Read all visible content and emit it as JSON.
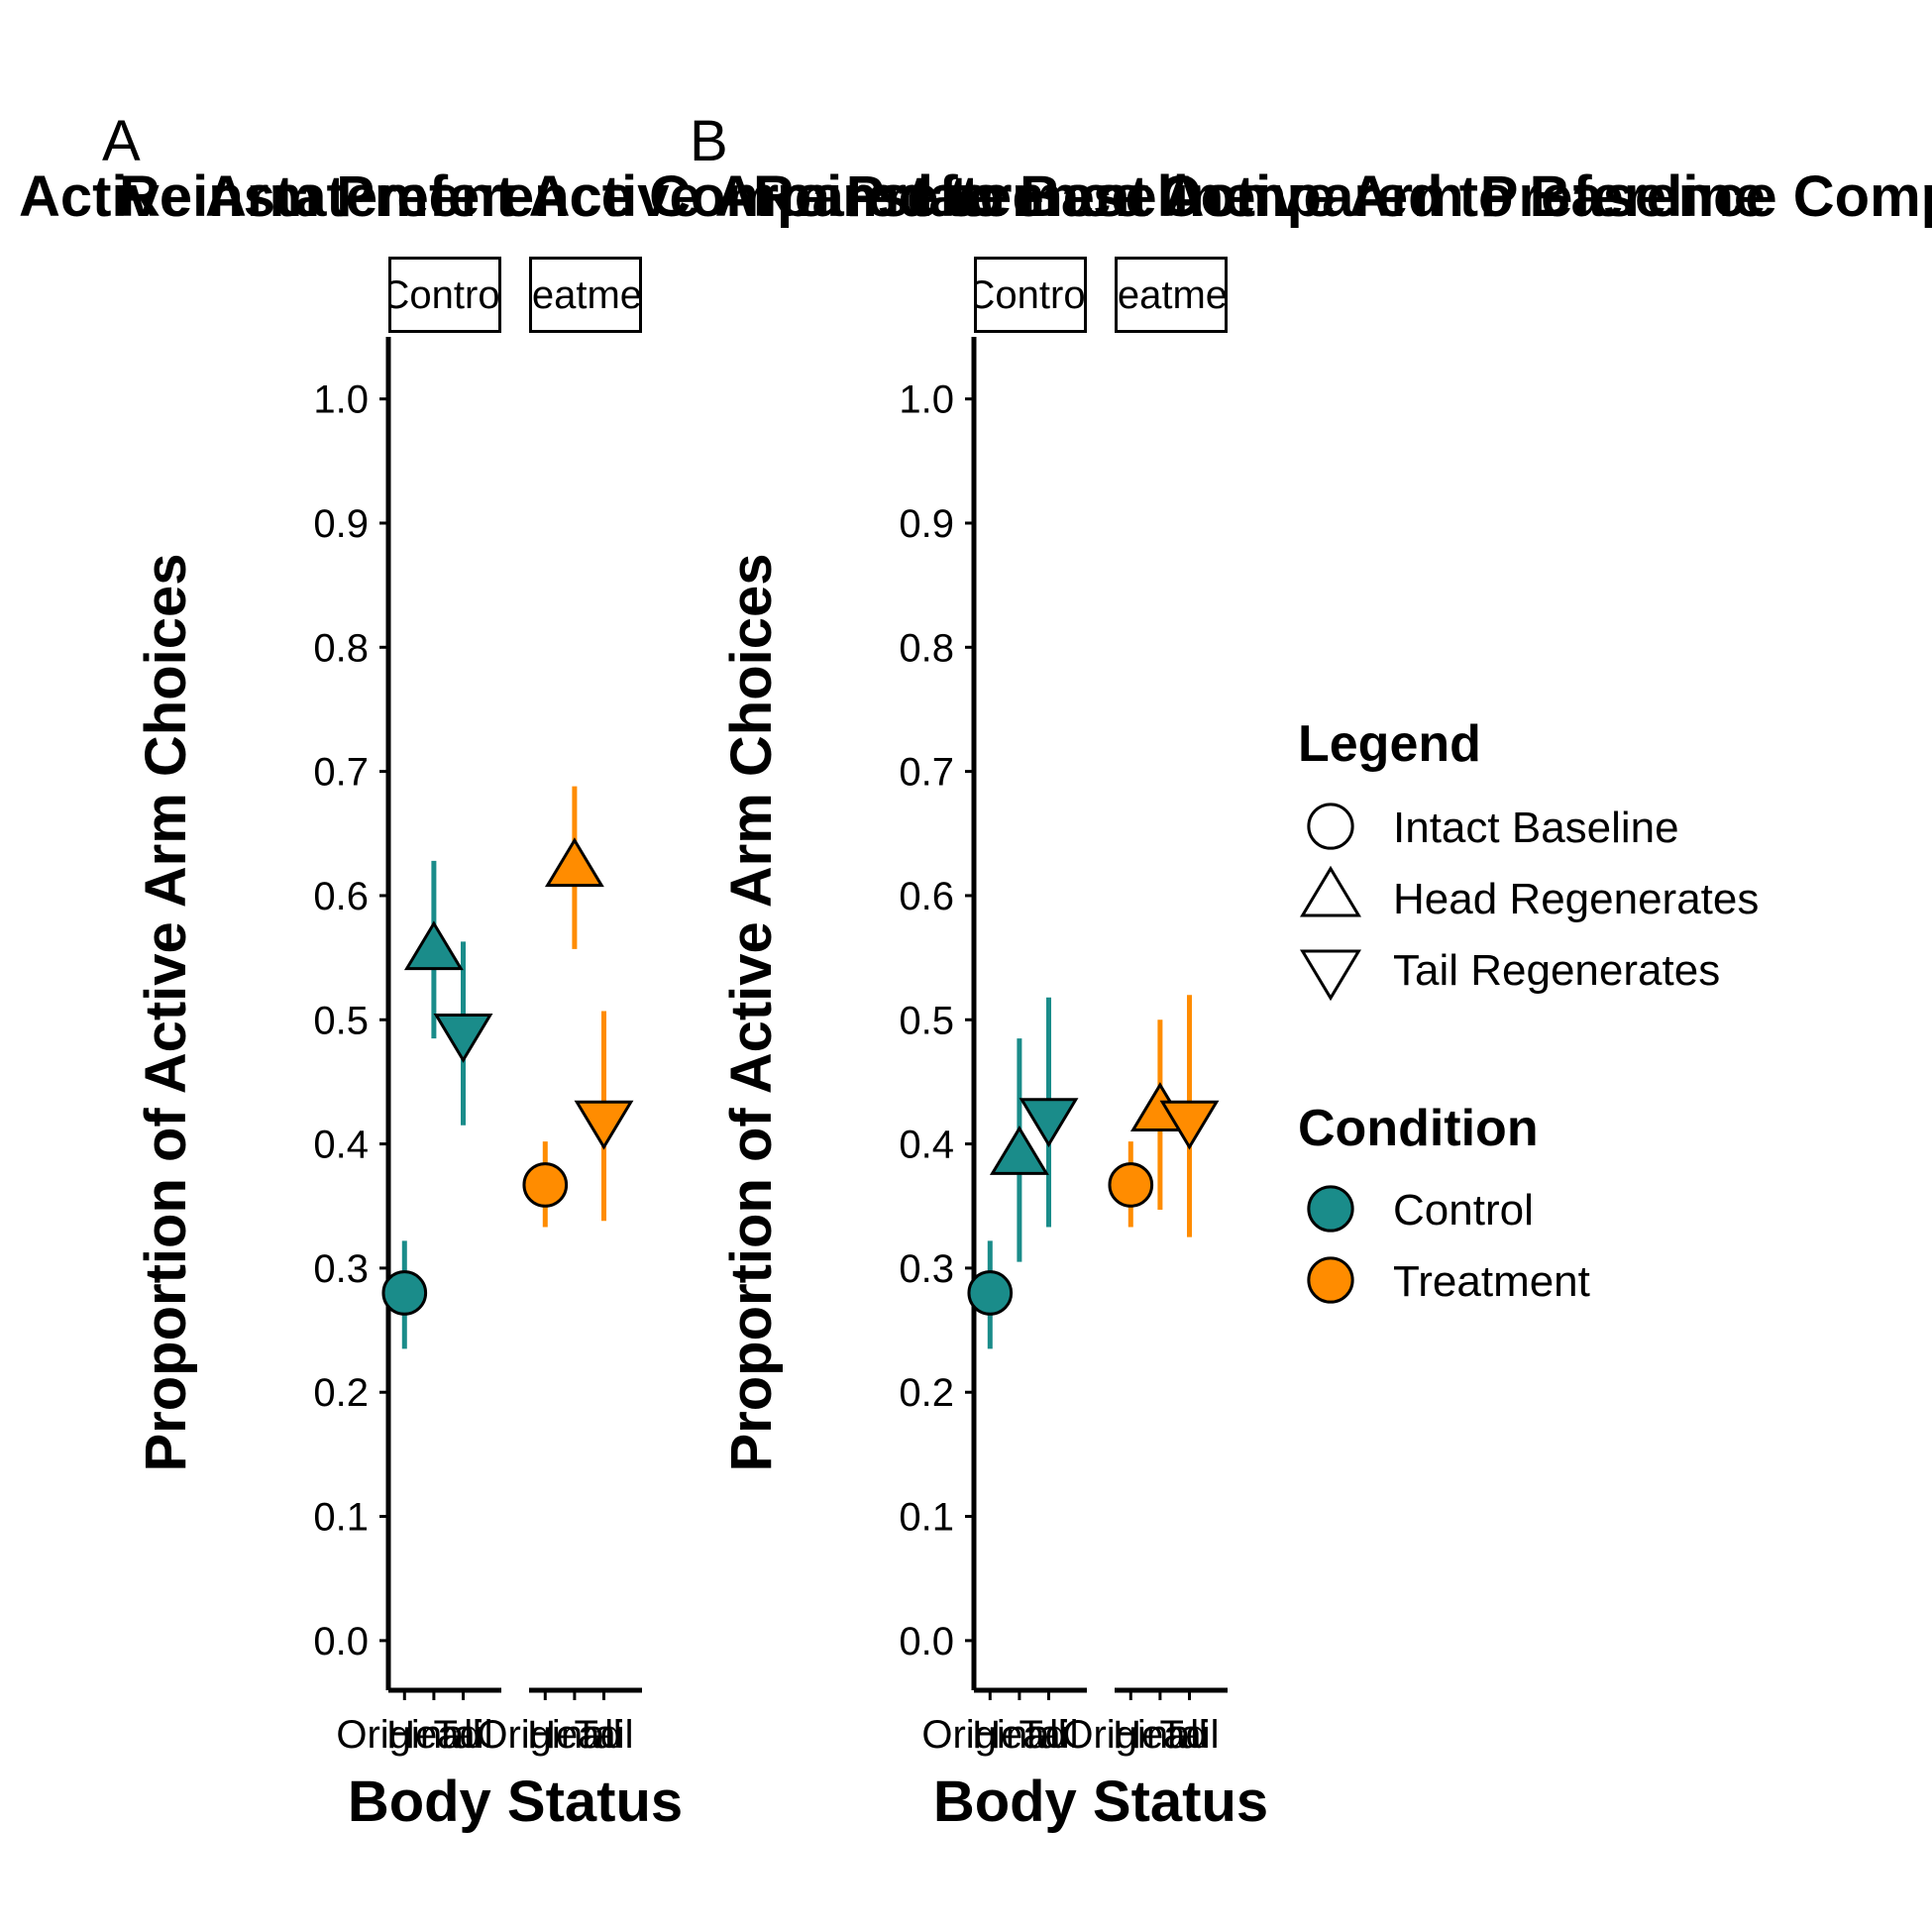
{
  "colors": {
    "control": "#1A8C8A",
    "treatment": "#FF8C00",
    "axis": "#000000"
  },
  "shapes": {
    "original": "circle",
    "head": "triangle-up",
    "tail": "triangle-down"
  },
  "chart_data": [
    {
      "type": "scatter",
      "panel_tag": "A",
      "title": "Active Arm Preference Compared to Baseline",
      "overlapping_title": "Reinstatement Active Arm Preference Compared to Baseline",
      "xlabel": "Body Status",
      "ylabel": "Proportion of Active Arm Choices",
      "ylim": [
        -0.04,
        1.05
      ],
      "yticks": [
        "0.0",
        "0.1",
        "0.2",
        "0.3",
        "0.4",
        "0.5",
        "0.6",
        "0.7",
        "0.8",
        "0.9",
        "1.0"
      ],
      "categories": [
        "Original",
        "Head",
        "Tail"
      ],
      "facets": [
        {
          "strip": "Control",
          "condition": "control",
          "points": [
            {
              "category": "Original",
              "shape": "original",
              "y": 0.28,
              "lo": 0.235,
              "hi": 0.322
            },
            {
              "category": "Head",
              "shape": "head",
              "y": 0.555,
              "lo": 0.485,
              "hi": 0.628
            },
            {
              "category": "Tail",
              "shape": "tail",
              "y": 0.49,
              "lo": 0.415,
              "hi": 0.563
            }
          ]
        },
        {
          "strip": "Treatment",
          "condition": "treatment",
          "points": [
            {
              "category": "Original",
              "shape": "original",
              "y": 0.367,
              "lo": 0.333,
              "hi": 0.402
            },
            {
              "category": "Head",
              "shape": "head",
              "y": 0.622,
              "lo": 0.557,
              "hi": 0.688
            },
            {
              "category": "Tail",
              "shape": "tail",
              "y": 0.42,
              "lo": 0.338,
              "hi": 0.507
            }
          ]
        }
      ]
    },
    {
      "type": "scatter",
      "panel_tag": "B",
      "title": "Reinstatement Active Arm Preference Compared to Baseline",
      "xlabel": "Body Status",
      "ylabel": "Proportion of Active Arm Choices",
      "ylim": [
        -0.04,
        1.05
      ],
      "yticks": [
        "0.0",
        "0.1",
        "0.2",
        "0.3",
        "0.4",
        "0.5",
        "0.6",
        "0.7",
        "0.8",
        "0.9",
        "1.0"
      ],
      "categories": [
        "Original",
        "Head",
        "Tail"
      ],
      "facets": [
        {
          "strip": "Control",
          "condition": "control",
          "points": [
            {
              "category": "Original",
              "shape": "original",
              "y": 0.28,
              "lo": 0.235,
              "hi": 0.322
            },
            {
              "category": "Head",
              "shape": "head",
              "y": 0.39,
              "lo": 0.305,
              "hi": 0.485
            },
            {
              "category": "Tail",
              "shape": "tail",
              "y": 0.422,
              "lo": 0.333,
              "hi": 0.518
            }
          ]
        },
        {
          "strip": "Treatment",
          "condition": "treatment",
          "points": [
            {
              "category": "Original",
              "shape": "original",
              "y": 0.367,
              "lo": 0.333,
              "hi": 0.402
            },
            {
              "category": "Head",
              "shape": "head",
              "y": 0.425,
              "lo": 0.347,
              "hi": 0.5
            },
            {
              "category": "Tail",
              "shape": "tail",
              "y": 0.42,
              "lo": 0.325,
              "hi": 0.52
            }
          ]
        }
      ]
    }
  ],
  "legend": {
    "shape_title": "Legend",
    "shape_items": [
      {
        "label": "Intact Baseline",
        "shape": "original"
      },
      {
        "label": "Head Regenerates",
        "shape": "head"
      },
      {
        "label": "Tail Regenerates",
        "shape": "tail"
      }
    ],
    "color_title": "Condition",
    "color_items": [
      {
        "label": "Control",
        "condition": "control"
      },
      {
        "label": "Treatment",
        "condition": "treatment"
      }
    ]
  }
}
